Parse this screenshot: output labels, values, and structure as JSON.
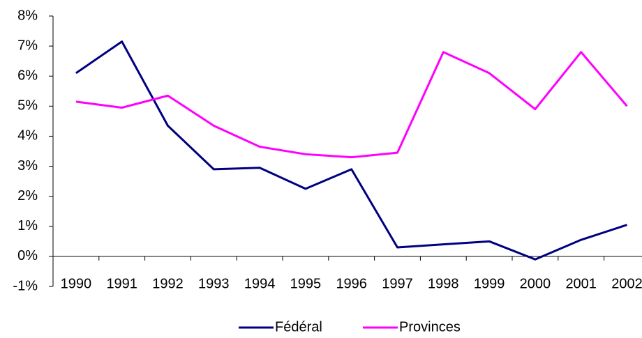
{
  "chart_data": {
    "type": "line",
    "categories": [
      "1990",
      "1991",
      "1992",
      "1993",
      "1994",
      "1995",
      "1996",
      "1997",
      "1998",
      "1999",
      "2000",
      "2001",
      "2002"
    ],
    "series": [
      {
        "name": "Fédéral",
        "color": "#000080",
        "values": [
          6.1,
          7.15,
          4.35,
          2.9,
          2.95,
          2.25,
          2.9,
          0.3,
          0.4,
          0.5,
          -0.1,
          0.55,
          1.05
        ]
      },
      {
        "name": "Provinces",
        "color": "#ff00ff",
        "values": [
          5.15,
          4.95,
          5.35,
          4.35,
          3.65,
          3.4,
          3.3,
          3.45,
          6.8,
          6.1,
          4.9,
          6.8,
          5.0
        ]
      }
    ],
    "ylim": [
      -1,
      8
    ],
    "yticks": [
      {
        "value": -1,
        "label": "-1%"
      },
      {
        "value": 0,
        "label": "0%"
      },
      {
        "value": 1,
        "label": "1%"
      },
      {
        "value": 2,
        "label": "2%"
      },
      {
        "value": 3,
        "label": "3%"
      },
      {
        "value": 4,
        "label": "4%"
      },
      {
        "value": 5,
        "label": "5%"
      },
      {
        "value": 6,
        "label": "6%"
      },
      {
        "value": 7,
        "label": "7%"
      },
      {
        "value": 8,
        "label": "8%"
      }
    ],
    "grid": false,
    "legend": "bottom"
  }
}
